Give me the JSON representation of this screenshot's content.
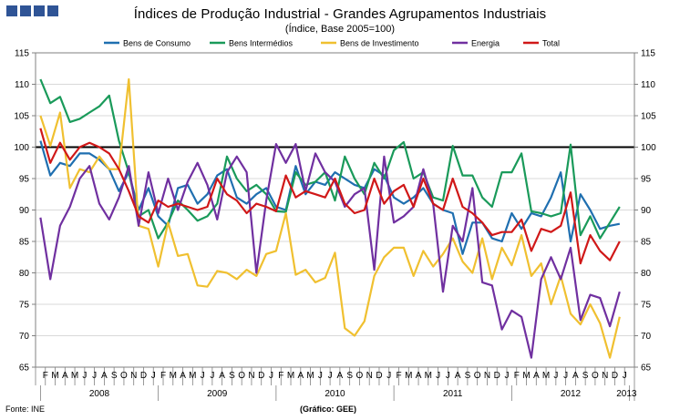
{
  "title": "Índices de Produção Industrial - Grandes Agrupamentos Industriais",
  "subtitle": "(Índice, Base 2005=100)",
  "source": "Fonte: INE",
  "credit": "(Gráfico: GEE)",
  "chart_data": {
    "type": "line",
    "x": [
      "2008-01",
      "2008-02",
      "2008-03",
      "2008-04",
      "2008-05",
      "2008-06",
      "2008-07",
      "2008-08",
      "2008-09",
      "2008-10",
      "2008-11",
      "2008-12",
      "2009-01",
      "2009-02",
      "2009-03",
      "2009-04",
      "2009-05",
      "2009-06",
      "2009-07",
      "2009-08",
      "2009-09",
      "2009-10",
      "2009-11",
      "2009-12",
      "2010-01",
      "2010-02",
      "2010-03",
      "2010-04",
      "2010-05",
      "2010-06",
      "2010-07",
      "2010-08",
      "2010-09",
      "2010-10",
      "2010-11",
      "2010-12",
      "2011-01",
      "2011-02",
      "2011-03",
      "2011-04",
      "2011-05",
      "2011-06",
      "2011-07",
      "2011-08",
      "2011-09",
      "2011-10",
      "2011-11",
      "2011-12",
      "2012-01",
      "2012-02",
      "2012-03",
      "2012-04",
      "2012-05",
      "2012-06",
      "2012-07",
      "2012-08",
      "2012-09",
      "2012-10",
      "2012-11",
      "2012-12",
      "2013-01"
    ],
    "month_labels": [
      "F",
      "M",
      "A",
      "M",
      "J",
      "J",
      "A",
      "S",
      "O",
      "N",
      "D",
      "J",
      "F",
      "M",
      "A",
      "M",
      "J",
      "J",
      "A",
      "S",
      "O",
      "N",
      "D",
      "J",
      "F",
      "M",
      "A",
      "M",
      "J",
      "J",
      "A",
      "S",
      "O",
      "N",
      "D",
      "J",
      "F",
      "M",
      "A",
      "M",
      "J",
      "J",
      "A",
      "S",
      "O",
      "N",
      "D",
      "J",
      "F",
      "M",
      "A",
      "M",
      "J",
      "J",
      "A",
      "S",
      "O",
      "N",
      "D",
      "J"
    ],
    "year_labels": [
      "2008",
      "2009",
      "2010",
      "2011",
      "2012",
      "2013"
    ],
    "ylim": [
      65,
      115
    ],
    "yticks": [
      65,
      70,
      75,
      80,
      85,
      90,
      95,
      100,
      105,
      110,
      115
    ],
    "reference_line": 100,
    "legend_position": "top",
    "series": [
      {
        "name": "Bens de Consumo",
        "color": "#1f6fb0",
        "values": [
          101,
          95.5,
          97.5,
          97,
          99,
          99,
          98,
          96.5,
          93,
          96,
          90,
          93.5,
          89,
          87.5,
          93.5,
          94,
          91,
          92.5,
          95.5,
          96.5,
          92,
          91,
          92.5,
          93.5,
          90.5,
          90,
          97,
          92.5,
          94.5,
          94,
          96,
          95,
          94,
          93.5,
          96.5,
          95.5,
          92,
          91,
          92,
          93.5,
          91,
          90,
          89.5,
          83,
          88,
          88,
          85.5,
          85,
          89.5,
          87,
          89.5,
          89,
          92,
          96,
          85,
          92.5,
          90,
          87,
          87.5,
          87.8,
          null
        ]
      },
      {
        "name": "Bens Intermédios",
        "color": "#1a9a5a",
        "values": [
          110.8,
          107,
          108,
          104,
          104.5,
          105.5,
          106.5,
          108.2,
          101,
          96,
          89,
          90,
          85.5,
          88,
          91.5,
          90,
          88.3,
          89,
          91,
          98.5,
          95,
          93,
          94,
          92.5,
          89.8,
          89.7,
          96,
          94,
          94.5,
          96,
          91.5,
          98.5,
          95,
          92.5,
          97.5,
          95,
          99.5,
          100.8,
          95,
          96,
          92,
          91.5,
          100.2,
          95.5,
          95.5,
          92,
          90.5,
          96,
          96,
          99,
          89.8,
          89.5,
          89,
          89.5,
          100.4,
          86,
          89,
          85.5,
          88,
          90.5,
          null
        ]
      },
      {
        "name": "Bens de Investimento",
        "color": "#f0c030",
        "values": [
          105,
          100.2,
          105.5,
          93.5,
          96.5,
          96,
          98.5,
          96.5,
          96.5,
          110.8,
          87.5,
          87,
          81,
          88,
          82.7,
          83,
          78,
          77.8,
          80.3,
          80,
          79,
          80.5,
          79.5,
          83,
          83.5,
          89.5,
          79.7,
          80.5,
          78.5,
          79.2,
          83.2,
          71.2,
          70,
          72.3,
          79.5,
          82.5,
          84,
          84,
          79.5,
          83.5,
          81,
          83,
          85.5,
          81.8,
          80,
          85.5,
          79,
          84,
          81.2,
          86,
          79.5,
          81.5,
          75,
          79.5,
          73.5,
          71.8,
          75,
          72,
          66.5,
          73,
          null
        ]
      },
      {
        "name": "Energia",
        "color": "#7030a0",
        "values": [
          88.8,
          79,
          87.5,
          90.5,
          95,
          97,
          91,
          88.5,
          92,
          97,
          87.5,
          96,
          89.5,
          95,
          90,
          94.5,
          97.5,
          94,
          88.5,
          96,
          98.5,
          96,
          80,
          91.5,
          100.5,
          97.5,
          100.5,
          93,
          99,
          96,
          94.5,
          90.5,
          92.5,
          93.5,
          80.5,
          98.5,
          88,
          89,
          90.5,
          96.5,
          91,
          77,
          87.5,
          85,
          93.5,
          78.5,
          78,
          71,
          74,
          73,
          66.5,
          79,
          82.5,
          79,
          84,
          72.5,
          76.5,
          76,
          71.5,
          77,
          null
        ]
      },
      {
        "name": "Total",
        "color": "#d01818",
        "values": [
          103,
          97.5,
          100.7,
          98,
          100,
          100.7,
          100,
          99,
          96.5,
          93,
          89,
          88,
          91.5,
          90.5,
          91,
          90.5,
          90,
          90.5,
          95,
          92.5,
          91.5,
          89.5,
          91,
          90.5,
          89.8,
          95.5,
          92,
          93,
          92.5,
          92,
          95,
          91,
          89.5,
          90,
          95,
          91,
          93,
          94,
          90.5,
          95,
          91,
          90,
          95,
          90.5,
          89.5,
          88,
          86,
          86.5,
          86.5,
          88.5,
          83.5,
          87,
          86.5,
          87.5,
          92.8,
          81.5,
          86,
          83.5,
          82,
          85,
          null
        ]
      }
    ]
  }
}
